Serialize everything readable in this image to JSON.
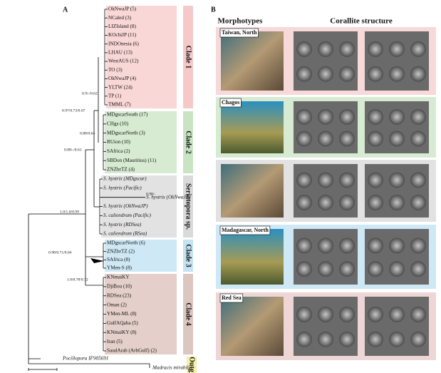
{
  "panel_a": {
    "label": "A",
    "clades": [
      {
        "name": "Clade 1",
        "leaves": [
          "OkNwaJP (5)",
          "NCaled (3)",
          "LIZIsland (8)",
          "KOchiJP (11)",
          "INDOnesia (6)",
          "LHAU (13)",
          "WestAUS (12)",
          "TO (3)",
          "OkNwaJP (4)",
          "YLTW (24)",
          "TP (1)",
          "TMML (7)"
        ]
      },
      {
        "name": "Clade 2",
        "leaves": [
          "MDgscarSouth (17)",
          "CHgs (10)",
          "MDgscarNorth (3)",
          "RUion (10)",
          "SAfrica (2)",
          "SBDon (Mauritius) (11)",
          "ZNZbrTZ (4)"
        ]
      },
      {
        "name": "Seriatopora sp.",
        "leaves": [
          "S. hystrix (MDgscar)",
          "S. hystrix (Pacific)",
          "S. hystrix (OkNwaJP)",
          "S. hystrix (OkNwaJP)",
          "S. caliendrum (Pacific)",
          "S. hystrix (RDSea)",
          "S. caliendrum (RSea)"
        ]
      },
      {
        "name": "Clade 3",
        "leaves": [
          "MDgscarNorth (6)",
          "ZNZbrTZ (2)",
          "SAfrica (8)",
          "YMen-S (8)"
        ]
      },
      {
        "name": "Clade 4",
        "leaves": [
          "KNmaiKY",
          "DjiBou (10)",
          "RDSea (23)",
          "Oman (2)",
          "YMen-ML (8)",
          "GulfAQaba (5)",
          "KNmaiKY (8)",
          "Iran (5)",
          "SaudArab (ArbGulf) (2)"
        ]
      }
    ],
    "node_supports": [
      "0.9/-/0.62",
      "0.97/0.73/0.67",
      "0.88/0.64",
      "0.88/-/0.61",
      "0.98/-",
      "1.0/1.0/0.99",
      "0.98/0.71/0.64",
      "1.0/0.78/0.72"
    ],
    "outgroup_label": "Outg",
    "outgroups": [
      "Pocillopora IF905691",
      "Madracis mirabilis"
    ]
  },
  "panel_b": {
    "label": "B",
    "headers": [
      "Morphotypes",
      "Corallite structure"
    ],
    "row_labels": [
      "Taiwan, North",
      "Chagos",
      "Madagascar, North",
      "Red Sea"
    ]
  }
}
